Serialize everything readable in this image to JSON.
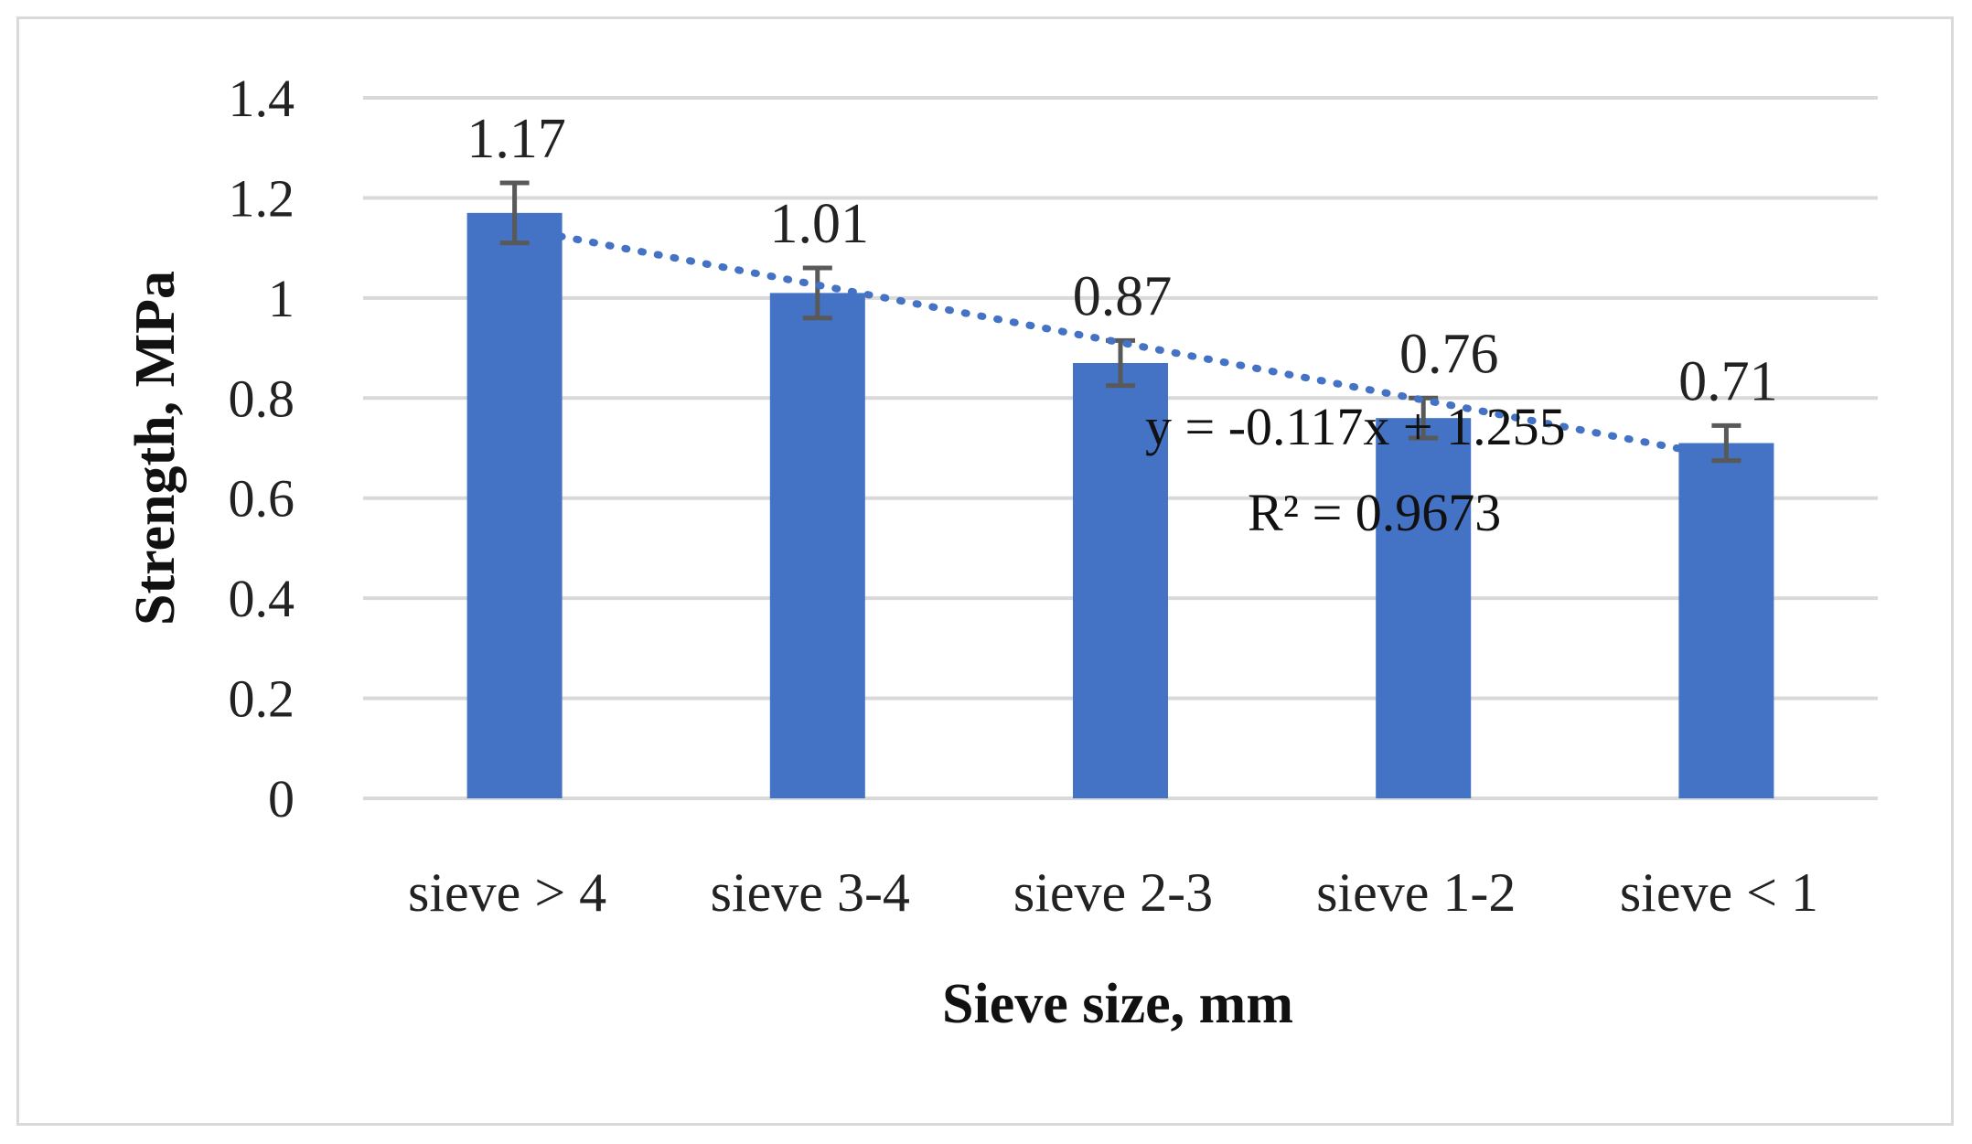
{
  "chart_data": {
    "type": "bar",
    "title": "",
    "xlabel": "Sieve size, mm",
    "ylabel": "Strength, MPa",
    "categories": [
      "sieve > 4",
      "sieve 3-4",
      "sieve 2-3",
      "sieve 1-2",
      "sieve < 1"
    ],
    "series": [
      {
        "name": "Strength",
        "values": [
          1.17,
          1.01,
          0.87,
          0.76,
          0.71
        ],
        "data_labels": [
          "1.17",
          "1.01",
          "0.87",
          "0.76",
          "0.71"
        ],
        "error": [
          0.06,
          0.05,
          0.045,
          0.04,
          0.035
        ],
        "color": "#4472c4"
      }
    ],
    "ylim": [
      0,
      1.4
    ],
    "yticks": [
      0,
      0.2,
      0.4,
      0.6,
      0.8,
      1,
      1.2,
      1.4
    ],
    "ytick_labels": [
      "0",
      "0.2",
      "0.4",
      "0.6",
      "0.8",
      "1",
      "1.2",
      "1.4"
    ],
    "grid": true,
    "trendline": {
      "type": "linear",
      "slope": -0.117,
      "intercept": 1.255,
      "equation": "y = -0.117x + 1.255",
      "r_squared": "R² = 0.9673",
      "color": "#4472c4",
      "style": "dotted"
    },
    "error_bar_color": "#595959",
    "grid_color": "#d9d9d9",
    "axis_color": "#d9d9d9"
  }
}
